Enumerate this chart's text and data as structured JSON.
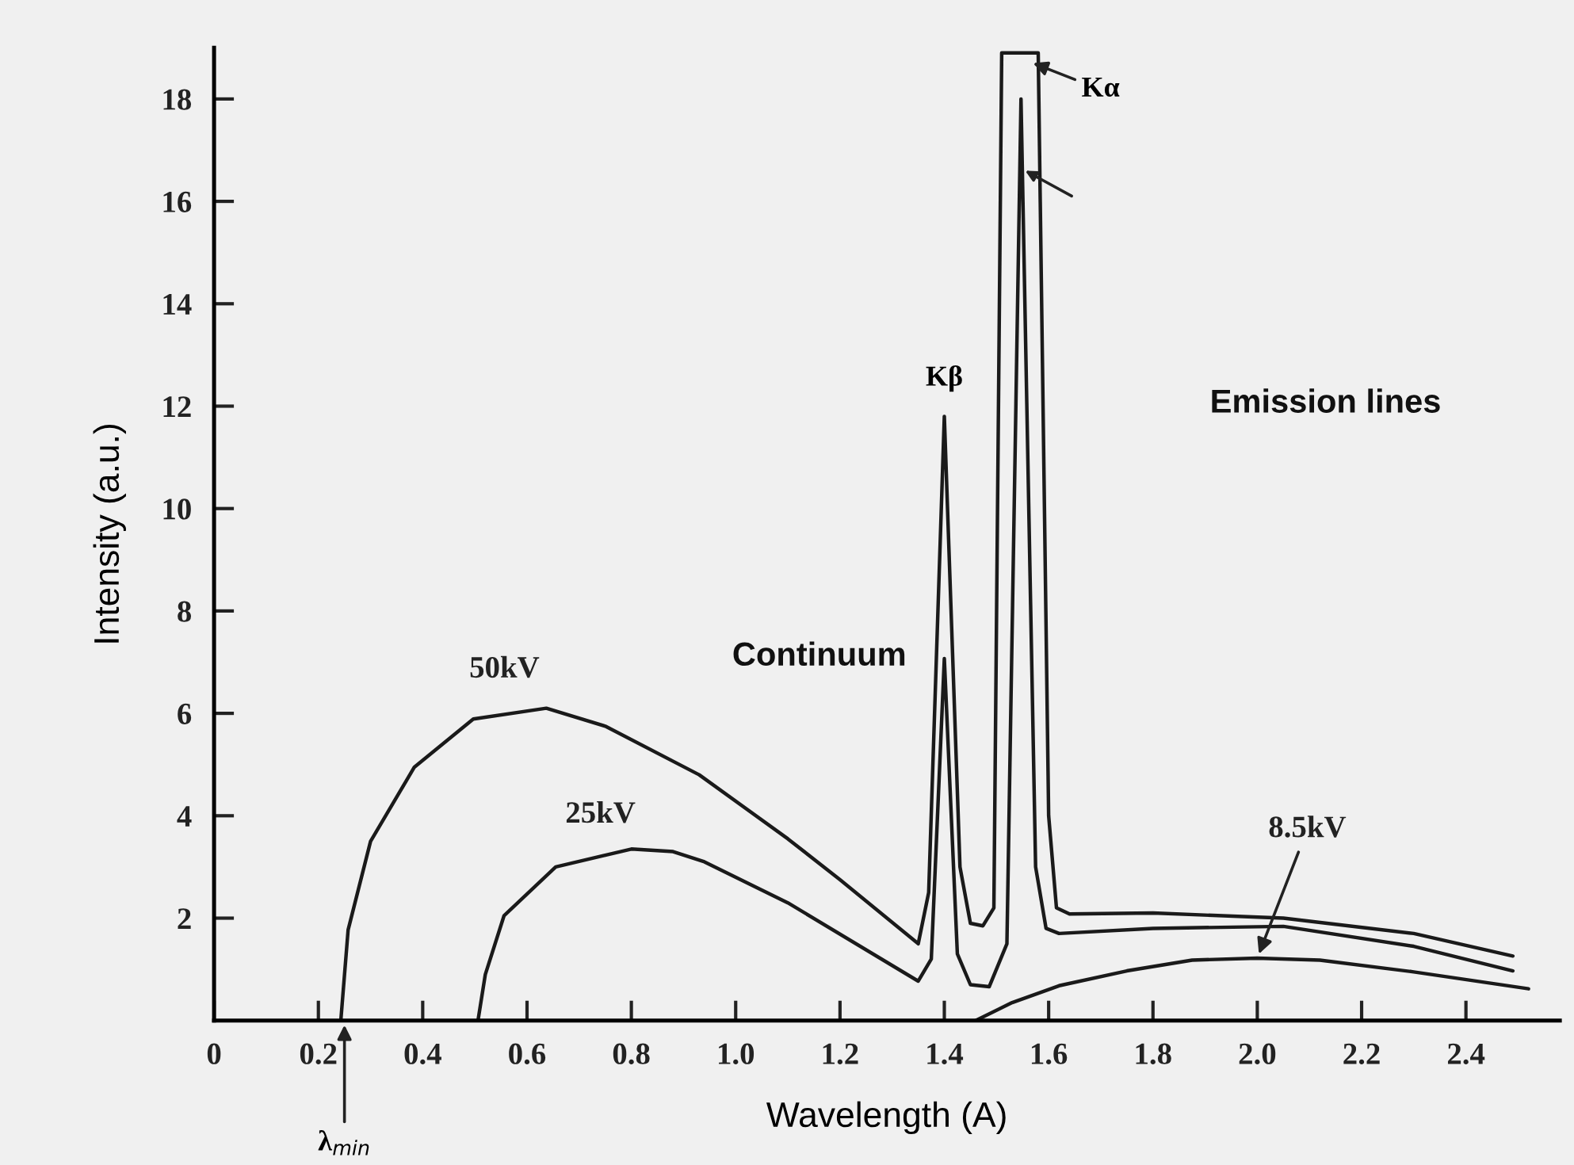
{
  "chart_data": {
    "type": "line",
    "xlabel": "Wavelength (A)",
    "ylabel": "Intensity (a.u.)",
    "xlim": [
      0,
      2.58
    ],
    "ylim": [
      0,
      19
    ],
    "xticks": [
      0,
      0.2,
      0.4,
      0.6,
      0.8,
      {
        "value": 1,
        "label": "1.0"
      },
      1.2,
      1.4,
      1.6,
      1.8,
      {
        "value": 2,
        "label": "2.0"
      },
      2.2,
      2.4
    ],
    "yticks": [
      2,
      4,
      6,
      8,
      10,
      12,
      14,
      16,
      18
    ],
    "marker": "none",
    "line_style": "solid",
    "series": [
      {
        "name": "50kV",
        "color": "#1a1a1a",
        "x": [
          0.243,
          0.257,
          0.3,
          0.384,
          0.497,
          0.637,
          0.75,
          0.93,
          1.1,
          1.2,
          1.35,
          1.37,
          1.4,
          1.43,
          1.45,
          1.474,
          1.495,
          1.51,
          1.58,
          1.6,
          1.615,
          1.64,
          1.8,
          2.05,
          2.3,
          2.49
        ],
        "values": [
          0,
          1.77,
          3.5,
          4.95,
          5.89,
          6.1,
          5.75,
          4.8,
          3.55,
          2.75,
          1.5,
          2.5,
          11.8,
          3,
          1.9,
          1.85,
          2.2,
          18.9,
          18.9,
          4,
          2.2,
          2.08,
          2.1,
          2.0,
          1.7,
          1.26
        ]
      },
      {
        "name": "25kV",
        "color": "#1a1a1a",
        "x": [
          0.506,
          0.52,
          0.556,
          0.655,
          0.8,
          0.88,
          0.94,
          1.1,
          1.35,
          1.375,
          1.4,
          1.425,
          1.45,
          1.486,
          1.52,
          1.547,
          1.575,
          1.595,
          1.62,
          1.8,
          2.05,
          2.3,
          2.49
        ],
        "values": [
          0,
          0.9,
          2.05,
          3.0,
          3.35,
          3.3,
          3.1,
          2.3,
          0.77,
          1.2,
          7.07,
          1.3,
          0.7,
          0.66,
          1.5,
          18.0,
          3,
          1.8,
          1.7,
          1.8,
          1.84,
          1.45,
          0.97
        ]
      },
      {
        "name": "8.5kV",
        "color": "#1a1a1a",
        "x": [
          1.46,
          1.53,
          1.62,
          1.75,
          1.875,
          2.0,
          2.12,
          2.3,
          2.52
        ],
        "values": [
          0,
          0.35,
          0.68,
          0.97,
          1.18,
          1.22,
          1.18,
          0.95,
          0.62
        ]
      }
    ],
    "annotations": [
      "Continuum",
      "Emission lines",
      {
        "text": "Kβ",
        "x": 1.4,
        "y": 11.8
      },
      {
        "text": "Kα",
        "x": 1.57,
        "y": 18.7
      },
      {
        "text": "λ$_{min}$",
        "x": 0.25,
        "y": 0
      }
    ]
  }
}
